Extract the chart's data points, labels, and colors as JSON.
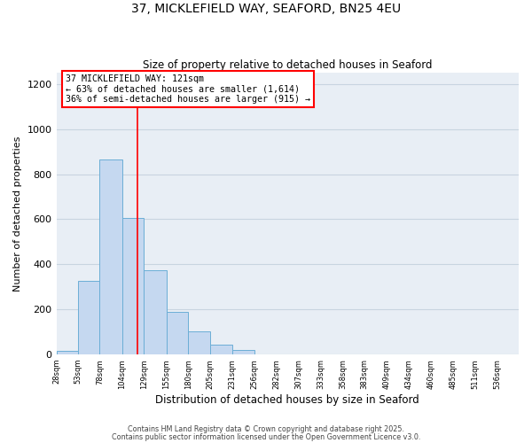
{
  "title_line1": "37, MICKLEFIELD WAY, SEAFORD, BN25 4EU",
  "title_line2": "Size of property relative to detached houses in Seaford",
  "xlabel": "Distribution of detached houses by size in Seaford",
  "ylabel": "Number of detached properties",
  "bin_labels": [
    "28sqm",
    "53sqm",
    "78sqm",
    "104sqm",
    "129sqm",
    "155sqm",
    "180sqm",
    "205sqm",
    "231sqm",
    "256sqm",
    "282sqm",
    "307sqm",
    "333sqm",
    "358sqm",
    "383sqm",
    "409sqm",
    "434sqm",
    "460sqm",
    "485sqm",
    "511sqm",
    "536sqm"
  ],
  "bin_edges": [
    28,
    53,
    78,
    104,
    129,
    155,
    180,
    205,
    231,
    256,
    282,
    307,
    333,
    358,
    383,
    409,
    434,
    460,
    485,
    511,
    536
  ],
  "bar_heights": [
    15,
    325,
    865,
    605,
    375,
    188,
    102,
    42,
    20,
    0,
    0,
    0,
    0,
    0,
    0,
    0,
    0,
    0,
    0,
    0
  ],
  "bar_color": "#c5d8f0",
  "bar_edge_color": "#6baed6",
  "vline_x": 121,
  "vline_color": "red",
  "annotation_line1": "37 MICKLEFIELD WAY: 121sqm",
  "annotation_line2": "← 63% of detached houses are smaller (1,614)",
  "annotation_line3": "36% of semi-detached houses are larger (915) →",
  "ylim": [
    0,
    1250
  ],
  "yticks": [
    0,
    200,
    400,
    600,
    800,
    1000,
    1200
  ],
  "background_color": "#ffffff",
  "plot_bg_color": "#e8eef5",
  "grid_color": "#c8d4e0",
  "footnote1": "Contains HM Land Registry data © Crown copyright and database right 2025.",
  "footnote2": "Contains public sector information licensed under the Open Government Licence v3.0."
}
